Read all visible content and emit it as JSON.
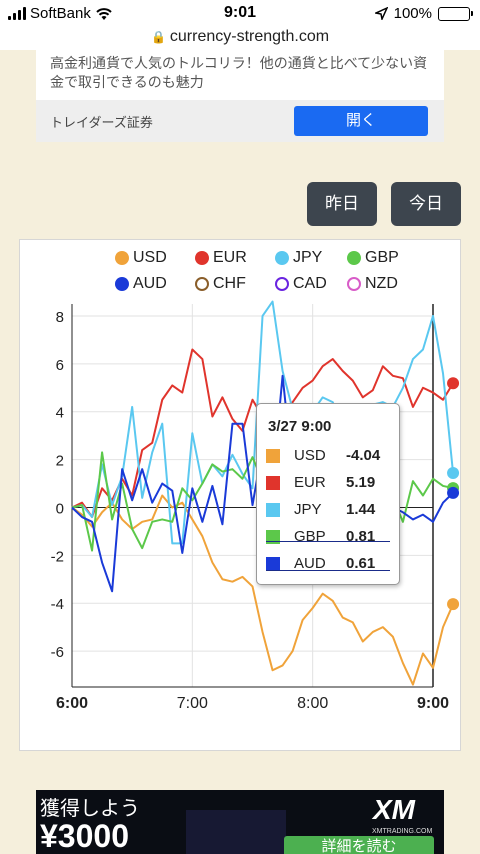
{
  "status": {
    "carrier": "SoftBank",
    "time": "9:01",
    "battery": "100%"
  },
  "url": "currency-strength.com",
  "ad_top": {
    "text": "高金利通貨で人気のトルコリラ！他の通貨と比べて少ない資金で取引できるのも魅力",
    "sponsor": "トレイダーズ証券",
    "button": "開く"
  },
  "buttons": {
    "yesterday": "昨日",
    "today": "今日"
  },
  "tooltip": {
    "title": "3/27 9:00",
    "rows": [
      {
        "name": "USD",
        "value": "-4.04"
      },
      {
        "name": "EUR",
        "value": "5.19"
      },
      {
        "name": "JPY",
        "value": "1.44"
      },
      {
        "name": "GBP",
        "value": "0.81"
      },
      {
        "name": "AUD",
        "value": "0.61"
      }
    ]
  },
  "ad_bottom": {
    "headline": "獲得しよう",
    "amount": "¥3000",
    "logo": "XM",
    "logo_sub": "XMTRADING.COM",
    "cta": "詳細を読む"
  },
  "chart_data": {
    "type": "line",
    "x_labels": [
      "6:00",
      "7:00",
      "8:00",
      "9:00"
    ],
    "xlim": [
      0,
      36
    ],
    "ylim": [
      -7.5,
      8.5
    ],
    "yticks": [
      8,
      6,
      4,
      2,
      0,
      -2,
      -4,
      -6
    ],
    "grid": true,
    "legend_position": "top",
    "series": [
      {
        "name": "USD",
        "color": "#f0a33a",
        "marker": "filled",
        "values": [
          0,
          -0.3,
          -0.8,
          -0.2,
          0.2,
          -0.5,
          -0.9,
          -0.6,
          -0.5,
          0.5,
          0.0,
          0.2,
          -0.5,
          -1.2,
          -2.3,
          -3.0,
          -3.1,
          -2.9,
          -3.3,
          -5.2,
          -6.8,
          -6.6,
          -6.0,
          -4.7,
          -4.2,
          -3.6,
          -3.9,
          -4.6,
          -4.8,
          -5.6,
          -5.2,
          -5.0,
          -5.4,
          -6.5,
          -7.4,
          -6.1,
          -6.7,
          -5.0,
          -4.04
        ]
      },
      {
        "name": "EUR",
        "color": "#e0342c",
        "marker": "filled",
        "values": [
          0,
          0.2,
          -0.4,
          0.8,
          0.3,
          1.2,
          0.5,
          2.4,
          2.7,
          4.5,
          5.1,
          4.8,
          6.6,
          6.2,
          3.8,
          4.6,
          3.7,
          3.2,
          4.5,
          3.8,
          3.6,
          4.0,
          4.4,
          5.0,
          5.3,
          5.9,
          6.2,
          5.7,
          5.3,
          4.6,
          4.9,
          5.9,
          5.5,
          5.4,
          4.2,
          5.0,
          4.8,
          4.5,
          5.19
        ]
      },
      {
        "name": "JPY",
        "color": "#5ac8f0",
        "marker": "filled",
        "values": [
          0,
          0.1,
          -0.4,
          1.8,
          0.1,
          1.3,
          4.2,
          0.4,
          2.3,
          3.5,
          -1.5,
          -1.5,
          3.1,
          1.0,
          1.8,
          1.3,
          2.2,
          1.4,
          0.8,
          8.0,
          8.6,
          5.7,
          4.1,
          2.8,
          4.0,
          4.6,
          4.4,
          3.4,
          4.3,
          3.7,
          4.3,
          4.4,
          4.2,
          5.0,
          6.2,
          6.6,
          8.0,
          5.6,
          1.44
        ]
      },
      {
        "name": "GBP",
        "color": "#5cc84a",
        "marker": "filled",
        "values": [
          0,
          0.1,
          -1.8,
          2.3,
          -0.5,
          1.0,
          -0.9,
          -1.7,
          -0.6,
          -0.5,
          -0.6,
          0.8,
          0.3,
          1.0,
          1.8,
          1.5,
          1.6,
          1.2,
          2.1,
          1.1,
          0.4,
          0.2,
          0.6,
          1.3,
          1.0,
          0.5,
          0.6,
          0.0,
          -0.1,
          -0.5,
          0.3,
          0.0,
          0.4,
          -0.6,
          1.1,
          0.5,
          1.2,
          0.9,
          0.81
        ]
      },
      {
        "name": "AUD",
        "color": "#1a3ad8",
        "marker": "filled",
        "values": [
          0,
          -0.4,
          -0.6,
          -2.3,
          -3.5,
          1.6,
          0.3,
          1.6,
          0.2,
          1.0,
          0.7,
          -1.9,
          0.8,
          -0.6,
          0.9,
          -0.7,
          3.5,
          3.5,
          0.1,
          2.5,
          1.0,
          5.5,
          1.5,
          2.7,
          0.9,
          1.3,
          1.0,
          0.6,
          0.0,
          0.6,
          0.3,
          0.1,
          0.0,
          -0.2,
          -0.5,
          -0.3,
          -0.6,
          0.2,
          0.61
        ]
      },
      {
        "name": "CHF",
        "color": "#8a5e2a",
        "marker": "hollow",
        "values": []
      },
      {
        "name": "CAD",
        "color": "#6a24e0",
        "marker": "hollow",
        "values": []
      },
      {
        "name": "NZD",
        "color": "#d85cc8",
        "marker": "hollow",
        "values": []
      }
    ]
  }
}
